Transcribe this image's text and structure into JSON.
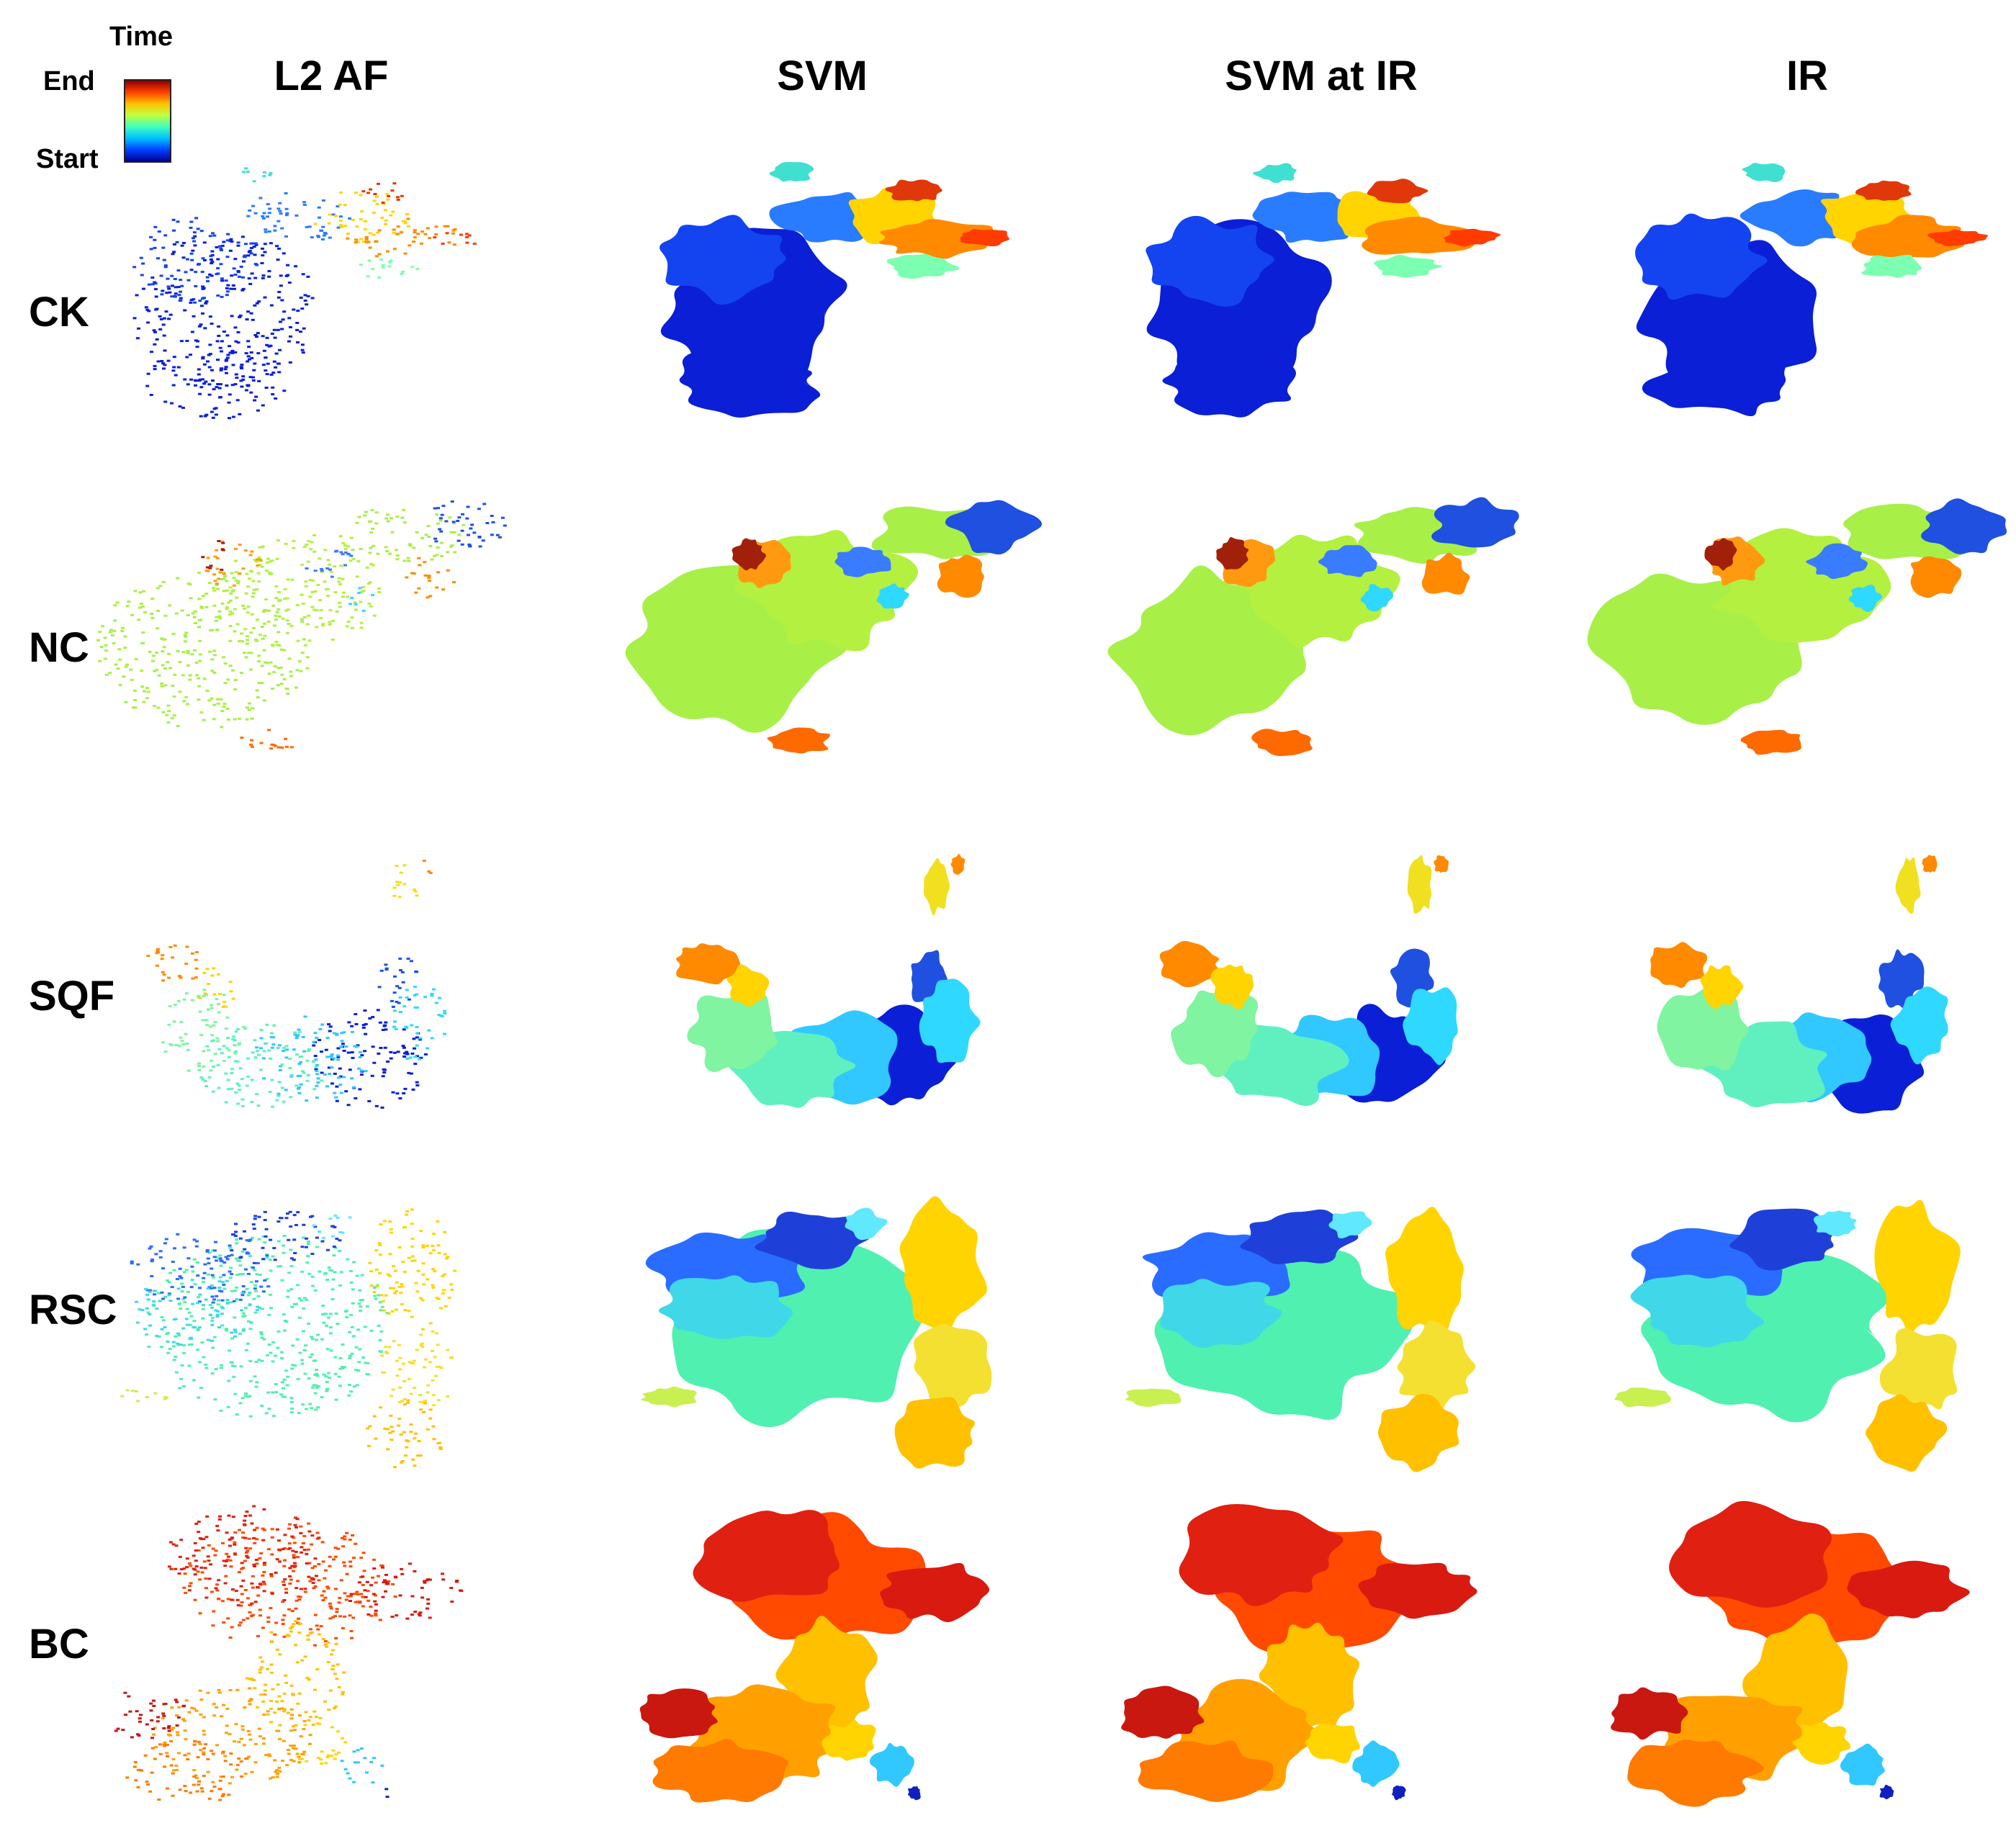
{
  "colorbar": {
    "title": "Time",
    "end_label": "End",
    "start_label": "Start",
    "colors": [
      "#00008f",
      "#0040ff",
      "#00c0ff",
      "#40ffbf",
      "#bfff40",
      "#ffc000",
      "#ff4000",
      "#8f0000"
    ]
  },
  "columns": [
    {
      "id": "l2af",
      "label": "L2 AF",
      "style": "points"
    },
    {
      "id": "svm",
      "label": "SVM",
      "style": "filled"
    },
    {
      "id": "svm_ir",
      "label": "SVM at IR",
      "style": "filled"
    },
    {
      "id": "ir",
      "label": "IR",
      "style": "filled"
    }
  ],
  "rows": [
    {
      "id": "ck",
      "label": "CK"
    },
    {
      "id": "nc",
      "label": "NC"
    },
    {
      "id": "sqf",
      "label": "SQF"
    },
    {
      "id": "rsc",
      "label": "RSC"
    },
    {
      "id": "bc",
      "label": "BC"
    }
  ]
}
